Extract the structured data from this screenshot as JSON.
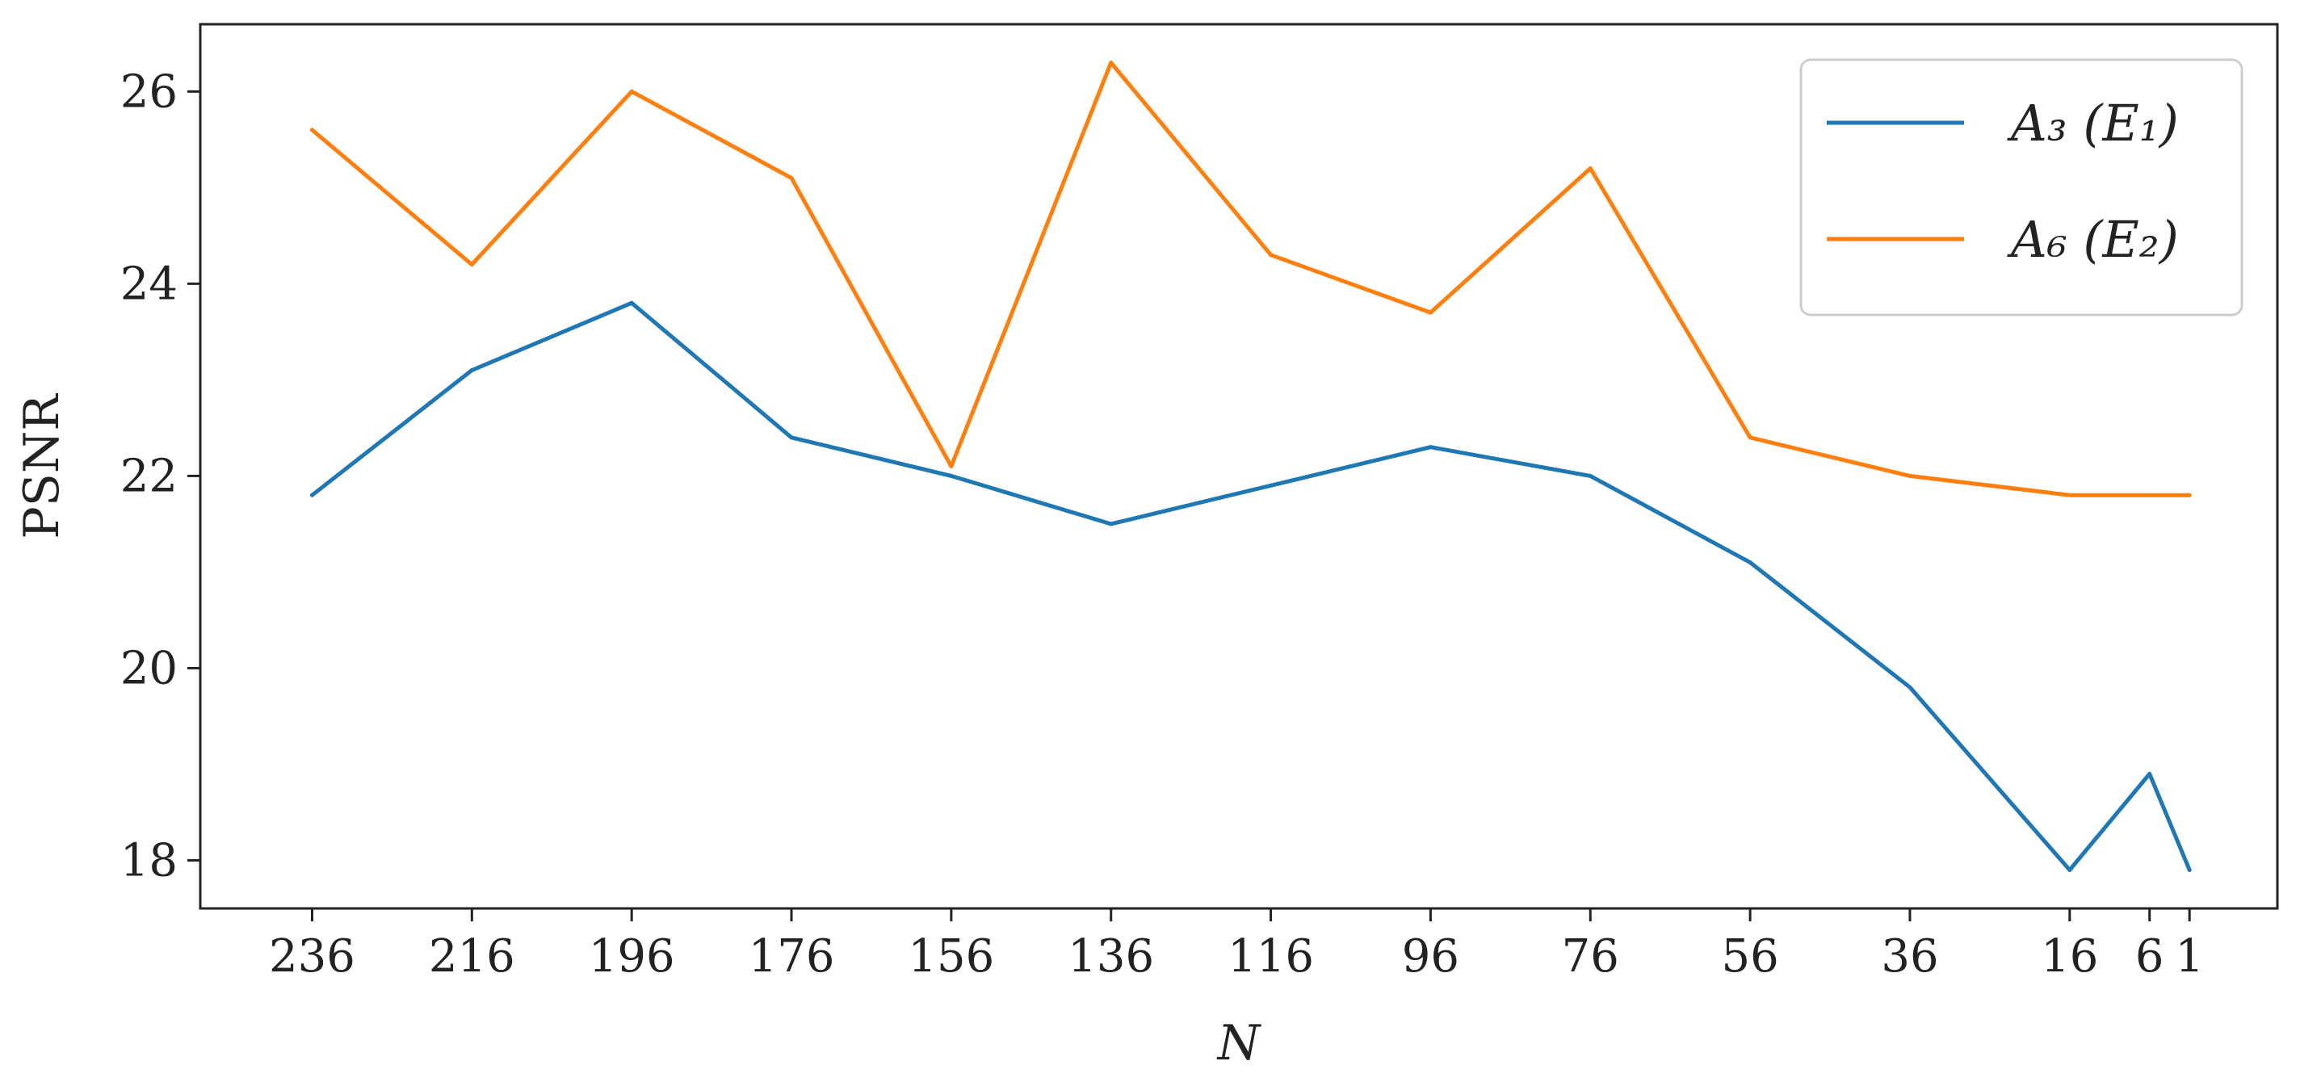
{
  "chart_data": {
    "type": "line",
    "title": "",
    "xlabel": "N",
    "ylabel": "PSNR",
    "x": [
      236,
      216,
      196,
      176,
      156,
      136,
      116,
      96,
      76,
      56,
      36,
      16,
      6,
      1
    ],
    "x_tick_labels": [
      "236",
      "216",
      "196",
      "176",
      "156",
      "136",
      "116",
      "96",
      "76",
      "56",
      "36",
      "16",
      "6",
      "1"
    ],
    "x_reversed": true,
    "xlim": [
      250,
      -10
    ],
    "ylim": [
      17.5,
      26.7
    ],
    "y_ticks": [
      18,
      20,
      22,
      24,
      26
    ],
    "y_tick_labels": [
      "18",
      "20",
      "22",
      "24",
      "26"
    ],
    "grid": false,
    "legend_position": "top-right",
    "series": [
      {
        "name": "A₃ (E₁)",
        "color": "#1f77b4",
        "values": [
          21.8,
          23.1,
          23.8,
          22.4,
          22.0,
          21.5,
          21.9,
          22.3,
          22.0,
          21.1,
          19.8,
          17.9,
          18.9,
          17.9
        ]
      },
      {
        "name": "A₆ (E₂)",
        "color": "#ff7f0e",
        "values": [
          25.6,
          24.2,
          26.0,
          25.1,
          22.1,
          26.3,
          24.3,
          23.7,
          25.2,
          22.4,
          22.0,
          21.8,
          21.8,
          21.8
        ]
      }
    ]
  }
}
